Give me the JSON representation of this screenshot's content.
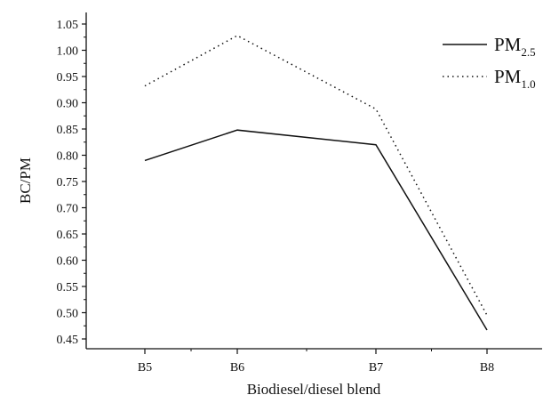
{
  "chart_data": {
    "type": "line",
    "categories": [
      "B5",
      "B6",
      "B7",
      "B8"
    ],
    "xlabel": "Biodiesel/diesel blend",
    "ylabel": "BC/PM",
    "ylim": [
      0.44,
      1.06
    ],
    "y_ticks": [
      "0.45",
      "0.50",
      "0.55",
      "0.60",
      "0.65",
      "0.70",
      "0.75",
      "0.80",
      "0.85",
      "0.90",
      "0.95",
      "1.00",
      "1.05"
    ],
    "legend_position": "top-right",
    "grid": false,
    "series": [
      {
        "name_main": "PM",
        "name_sub": "2.5",
        "style": "solid",
        "color": "#111111",
        "values": [
          0.79,
          0.848,
          0.82,
          0.467
        ]
      },
      {
        "name_main": "PM",
        "name_sub": "1.0",
        "style": "dotted",
        "color": "#111111",
        "values": [
          0.932,
          1.028,
          0.888,
          0.495
        ]
      }
    ]
  }
}
